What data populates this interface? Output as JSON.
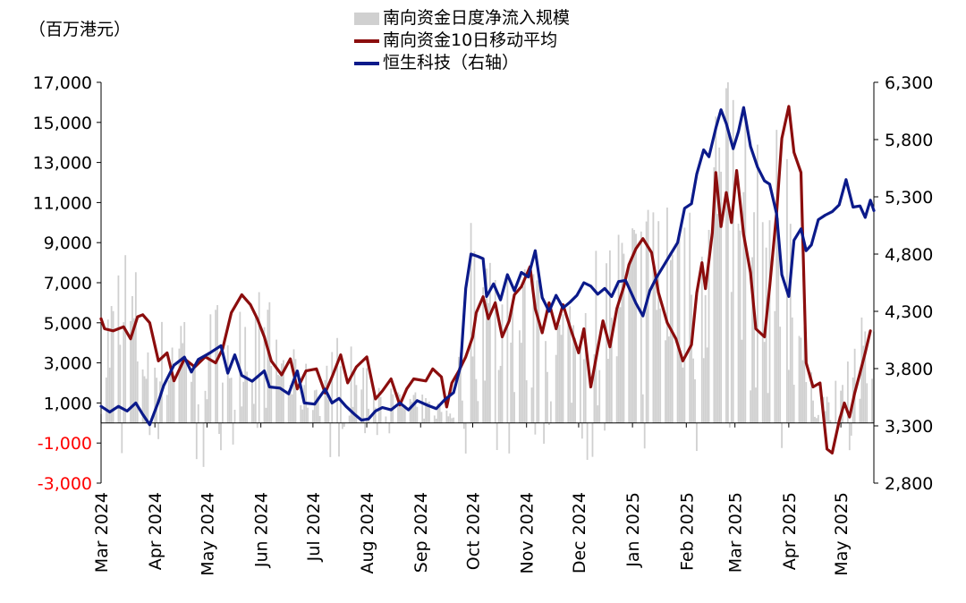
{
  "unit_label": "（百万港元）",
  "legend": [
    {
      "label": "南向资金日度净流入规模",
      "kind": "bar",
      "color": "#d0d0d0"
    },
    {
      "label": "南向资金10日移动平均",
      "kind": "line",
      "color": "#8b0d0d"
    },
    {
      "label": "恒生科技（右轴）",
      "kind": "line",
      "color": "#0b1a8a"
    }
  ],
  "chart_data": {
    "type": "bar+line",
    "left_axis": {
      "min": -3000,
      "max": 17000,
      "ticks": [
        "17,000",
        "15,000",
        "13,000",
        "11,000",
        "9,000",
        "7,000",
        "5,000",
        "3,000",
        "1,000",
        "-1,000",
        "-3,000"
      ],
      "tick_values": [
        17000,
        15000,
        13000,
        11000,
        9000,
        7000,
        5000,
        3000,
        1000,
        -1000,
        -3000
      ],
      "negative_color": "#ff0000"
    },
    "right_axis": {
      "min": 2800,
      "max": 6300,
      "ticks": [
        "6,300",
        "5,800",
        "5,300",
        "4,800",
        "4,300",
        "3,800",
        "3,300",
        "2,800"
      ],
      "tick_values": [
        6300,
        5800,
        5300,
        4800,
        4300,
        3800,
        3300,
        2800
      ]
    },
    "x_axis": {
      "start": "2024-03-01",
      "end": "2025-05-20",
      "ticks": [
        {
          "label": "Mar 2024",
          "date": "2024-03-01"
        },
        {
          "label": "Apr 2024",
          "date": "2024-04-01"
        },
        {
          "label": "May 2024",
          "date": "2024-05-01"
        },
        {
          "label": "Jun 2024",
          "date": "2024-06-01"
        },
        {
          "label": "Jul 2024",
          "date": "2024-07-01"
        },
        {
          "label": "Aug 2024",
          "date": "2024-08-01"
        },
        {
          "label": "Sep 2024",
          "date": "2024-09-01"
        },
        {
          "label": "Oct 2024",
          "date": "2024-10-01"
        },
        {
          "label": "Nov 2024",
          "date": "2024-11-01"
        },
        {
          "label": "Dec 2024",
          "date": "2024-12-01"
        },
        {
          "label": "Jan 2025",
          "date": "2025-01-01"
        },
        {
          "label": "Feb 2025",
          "date": "2025-02-01"
        },
        {
          "label": "Mar 2025",
          "date": "2025-03-01"
        },
        {
          "label": "Apr 2025",
          "date": "2025-04-01"
        },
        {
          "label": "May 2025",
          "date": "2025-05-01"
        }
      ]
    },
    "series": [
      {
        "name": "南向资金日度净流入规模",
        "type": "bar",
        "axis": "left",
        "color": "#d0d0d0",
        "anchors": [
          [
            "2024-03-01",
            3000
          ],
          [
            "2024-03-15",
            5500
          ],
          [
            "2024-04-01",
            2500
          ],
          [
            "2024-04-15",
            4000
          ],
          [
            "2024-05-01",
            3000
          ],
          [
            "2024-05-20",
            4500
          ],
          [
            "2024-06-05",
            3500
          ],
          [
            "2024-06-20",
            2000
          ],
          [
            "2024-07-01",
            1500
          ],
          [
            "2024-07-15",
            2500
          ],
          [
            "2024-08-01",
            1800
          ],
          [
            "2024-08-15",
            1000
          ],
          [
            "2024-09-01",
            800
          ],
          [
            "2024-09-20",
            500
          ],
          [
            "2024-10-01",
            6500
          ],
          [
            "2024-10-15",
            5000
          ],
          [
            "2024-11-01",
            4500
          ],
          [
            "2024-11-15",
            3500
          ],
          [
            "2024-12-01",
            4000
          ],
          [
            "2024-12-15",
            5500
          ],
          [
            "2025-01-01",
            6000
          ],
          [
            "2025-01-15",
            7000
          ],
          [
            "2025-02-01",
            8000
          ],
          [
            "2025-02-15",
            11000
          ],
          [
            "2025-03-01",
            9500
          ],
          [
            "2025-03-15",
            7500
          ],
          [
            "2025-04-01",
            9000
          ],
          [
            "2025-04-12",
            1500
          ],
          [
            "2025-04-25",
            800
          ],
          [
            "2025-05-10",
            3000
          ],
          [
            "2025-05-20",
            2500
          ]
        ]
      },
      {
        "name": "南向资金10日移动平均",
        "type": "line",
        "axis": "left",
        "color": "#8b0d0d",
        "points": [
          [
            "2024-03-01",
            5200
          ],
          [
            "2024-03-03",
            4700
          ],
          [
            "2024-03-08",
            4600
          ],
          [
            "2024-03-14",
            4800
          ],
          [
            "2024-03-18",
            4200
          ],
          [
            "2024-03-22",
            5300
          ],
          [
            "2024-03-25",
            5400
          ],
          [
            "2024-03-29",
            5000
          ],
          [
            "2024-04-03",
            3100
          ],
          [
            "2024-04-08",
            3500
          ],
          [
            "2024-04-12",
            2100
          ],
          [
            "2024-04-18",
            3200
          ],
          [
            "2024-04-24",
            2800
          ],
          [
            "2024-04-30",
            3300
          ],
          [
            "2024-05-06",
            3000
          ],
          [
            "2024-05-10",
            3700
          ],
          [
            "2024-05-15",
            5500
          ],
          [
            "2024-05-21",
            6400
          ],
          [
            "2024-05-26",
            5900
          ],
          [
            "2024-05-30",
            5200
          ],
          [
            "2024-06-03",
            4300
          ],
          [
            "2024-06-07",
            3100
          ],
          [
            "2024-06-13",
            2400
          ],
          [
            "2024-06-18",
            3200
          ],
          [
            "2024-06-22",
            1700
          ],
          [
            "2024-06-27",
            2600
          ],
          [
            "2024-07-03",
            2700
          ],
          [
            "2024-07-08",
            1500
          ],
          [
            "2024-07-12",
            2300
          ],
          [
            "2024-07-17",
            3400
          ],
          [
            "2024-07-21",
            2000
          ],
          [
            "2024-07-26",
            2800
          ],
          [
            "2024-08-01",
            3300
          ],
          [
            "2024-08-06",
            1200
          ],
          [
            "2024-08-10",
            1600
          ],
          [
            "2024-08-15",
            2200
          ],
          [
            "2024-08-20",
            900
          ],
          [
            "2024-08-24",
            1700
          ],
          [
            "2024-08-28",
            2200
          ],
          [
            "2024-09-04",
            2100
          ],
          [
            "2024-09-08",
            2700
          ],
          [
            "2024-09-13",
            2300
          ],
          [
            "2024-09-16",
            800
          ],
          [
            "2024-09-19",
            2000
          ],
          [
            "2024-09-23",
            2600
          ],
          [
            "2024-09-27",
            3300
          ],
          [
            "2024-10-01",
            4300
          ],
          [
            "2024-10-03",
            5500
          ],
          [
            "2024-10-07",
            6300
          ],
          [
            "2024-10-10",
            5200
          ],
          [
            "2024-10-14",
            6000
          ],
          [
            "2024-10-18",
            4300
          ],
          [
            "2024-10-22",
            5100
          ],
          [
            "2024-10-25",
            6400
          ],
          [
            "2024-10-29",
            6800
          ],
          [
            "2024-11-03",
            7800
          ],
          [
            "2024-11-06",
            5700
          ],
          [
            "2024-11-10",
            4500
          ],
          [
            "2024-11-14",
            6000
          ],
          [
            "2024-11-18",
            4700
          ],
          [
            "2024-11-22",
            5900
          ],
          [
            "2024-11-26",
            4800
          ],
          [
            "2024-12-01",
            3500
          ],
          [
            "2024-12-04",
            4700
          ],
          [
            "2024-12-08",
            1800
          ],
          [
            "2024-12-12",
            3700
          ],
          [
            "2024-12-15",
            5100
          ],
          [
            "2024-12-19",
            3800
          ],
          [
            "2024-12-23",
            5700
          ],
          [
            "2024-12-27",
            6800
          ],
          [
            "2024-12-30",
            7900
          ],
          [
            "2025-01-03",
            8700
          ],
          [
            "2025-01-07",
            9200
          ],
          [
            "2025-01-12",
            8500
          ],
          [
            "2025-01-16",
            6500
          ],
          [
            "2025-01-21",
            5000
          ],
          [
            "2025-01-26",
            4200
          ],
          [
            "2025-01-30",
            3100
          ],
          [
            "2025-02-04",
            3900
          ],
          [
            "2025-02-07",
            6500
          ],
          [
            "2025-02-10",
            8000
          ],
          [
            "2025-02-12",
            6700
          ],
          [
            "2025-02-16",
            9500
          ],
          [
            "2025-02-18",
            12500
          ],
          [
            "2025-02-21",
            9800
          ],
          [
            "2025-02-24",
            11500
          ],
          [
            "2025-02-27",
            10000
          ],
          [
            "2025-03-02",
            12600
          ],
          [
            "2025-03-06",
            9400
          ],
          [
            "2025-03-10",
            7500
          ],
          [
            "2025-03-13",
            4700
          ],
          [
            "2025-03-18",
            4300
          ],
          [
            "2025-03-21",
            6800
          ],
          [
            "2025-03-25",
            10500
          ],
          [
            "2025-03-28",
            14200
          ],
          [
            "2025-04-01",
            15800
          ],
          [
            "2025-04-04",
            13500
          ],
          [
            "2025-04-08",
            12500
          ],
          [
            "2025-04-11",
            3000
          ],
          [
            "2025-04-15",
            1800
          ],
          [
            "2025-04-19",
            2000
          ],
          [
            "2025-04-23",
            -1300
          ],
          [
            "2025-04-26",
            -1500
          ],
          [
            "2025-04-30",
            100
          ],
          [
            "2025-05-03",
            1000
          ],
          [
            "2025-05-06",
            300
          ],
          [
            "2025-05-09",
            1500
          ],
          [
            "2025-05-12",
            2500
          ],
          [
            "2025-05-15",
            3500
          ],
          [
            "2025-05-18",
            4600
          ]
        ]
      },
      {
        "name": "恒生科技（右轴）",
        "type": "line",
        "axis": "right",
        "color": "#0b1a8a",
        "points": [
          [
            "2024-03-01",
            3470
          ],
          [
            "2024-03-06",
            3420
          ],
          [
            "2024-03-11",
            3470
          ],
          [
            "2024-03-16",
            3430
          ],
          [
            "2024-03-21",
            3500
          ],
          [
            "2024-03-25",
            3400
          ],
          [
            "2024-03-29",
            3310
          ],
          [
            "2024-04-03",
            3510
          ],
          [
            "2024-04-06",
            3650
          ],
          [
            "2024-04-12",
            3830
          ],
          [
            "2024-04-18",
            3900
          ],
          [
            "2024-04-22",
            3770
          ],
          [
            "2024-04-26",
            3880
          ],
          [
            "2024-05-03",
            3940
          ],
          [
            "2024-05-09",
            4000
          ],
          [
            "2024-05-13",
            3760
          ],
          [
            "2024-05-17",
            3920
          ],
          [
            "2024-05-21",
            3740
          ],
          [
            "2024-05-27",
            3690
          ],
          [
            "2024-06-03",
            3780
          ],
          [
            "2024-06-06",
            3640
          ],
          [
            "2024-06-12",
            3630
          ],
          [
            "2024-06-17",
            3580
          ],
          [
            "2024-06-22",
            3780
          ],
          [
            "2024-06-26",
            3500
          ],
          [
            "2024-07-02",
            3490
          ],
          [
            "2024-07-08",
            3620
          ],
          [
            "2024-07-12",
            3500
          ],
          [
            "2024-07-16",
            3540
          ],
          [
            "2024-07-20",
            3470
          ],
          [
            "2024-07-25",
            3400
          ],
          [
            "2024-07-29",
            3350
          ],
          [
            "2024-08-02",
            3360
          ],
          [
            "2024-08-06",
            3430
          ],
          [
            "2024-08-10",
            3460
          ],
          [
            "2024-08-15",
            3440
          ],
          [
            "2024-08-20",
            3500
          ],
          [
            "2024-08-25",
            3440
          ],
          [
            "2024-08-30",
            3520
          ],
          [
            "2024-09-05",
            3480
          ],
          [
            "2024-09-10",
            3450
          ],
          [
            "2024-09-15",
            3530
          ],
          [
            "2024-09-20",
            3590
          ],
          [
            "2024-09-24",
            3820
          ],
          [
            "2024-09-27",
            4500
          ],
          [
            "2024-09-30",
            4800
          ],
          [
            "2024-10-04",
            4780
          ],
          [
            "2024-10-07",
            4760
          ],
          [
            "2024-10-09",
            4430
          ],
          [
            "2024-10-13",
            4540
          ],
          [
            "2024-10-17",
            4400
          ],
          [
            "2024-10-21",
            4620
          ],
          [
            "2024-10-25",
            4480
          ],
          [
            "2024-10-29",
            4640
          ],
          [
            "2024-11-02",
            4600
          ],
          [
            "2024-11-06",
            4830
          ],
          [
            "2024-11-10",
            4420
          ],
          [
            "2024-11-14",
            4300
          ],
          [
            "2024-11-18",
            4440
          ],
          [
            "2024-11-22",
            4330
          ],
          [
            "2024-11-26",
            4380
          ],
          [
            "2024-11-30",
            4440
          ],
          [
            "2024-12-04",
            4550
          ],
          [
            "2024-12-08",
            4520
          ],
          [
            "2024-12-12",
            4450
          ],
          [
            "2024-12-16",
            4500
          ],
          [
            "2024-12-20",
            4430
          ],
          [
            "2024-12-24",
            4560
          ],
          [
            "2024-12-28",
            4570
          ],
          [
            "2025-01-03",
            4370
          ],
          [
            "2025-01-07",
            4260
          ],
          [
            "2025-01-11",
            4480
          ],
          [
            "2025-01-15",
            4600
          ],
          [
            "2025-01-19",
            4700
          ],
          [
            "2025-01-23",
            4800
          ],
          [
            "2025-01-27",
            4900
          ],
          [
            "2025-01-31",
            5200
          ],
          [
            "2025-02-04",
            5240
          ],
          [
            "2025-02-07",
            5500
          ],
          [
            "2025-02-11",
            5710
          ],
          [
            "2025-02-14",
            5650
          ],
          [
            "2025-02-18",
            5900
          ],
          [
            "2025-02-21",
            6060
          ],
          [
            "2025-02-24",
            5940
          ],
          [
            "2025-02-28",
            5720
          ],
          [
            "2025-03-03",
            5870
          ],
          [
            "2025-03-06",
            6080
          ],
          [
            "2025-03-10",
            5740
          ],
          [
            "2025-03-14",
            5560
          ],
          [
            "2025-03-18",
            5440
          ],
          [
            "2025-03-21",
            5410
          ],
          [
            "2025-03-25",
            5150
          ],
          [
            "2025-03-28",
            4620
          ],
          [
            "2025-04-01",
            4430
          ],
          [
            "2025-04-04",
            4920
          ],
          [
            "2025-04-08",
            5020
          ],
          [
            "2025-04-11",
            4830
          ],
          [
            "2025-04-14",
            4880
          ],
          [
            "2025-04-18",
            5100
          ],
          [
            "2025-04-22",
            5140
          ],
          [
            "2025-04-26",
            5170
          ],
          [
            "2025-04-30",
            5230
          ],
          [
            "2025-05-04",
            5450
          ],
          [
            "2025-05-08",
            5210
          ],
          [
            "2025-05-12",
            5220
          ],
          [
            "2025-05-15",
            5120
          ],
          [
            "2025-05-18",
            5270
          ],
          [
            "2025-05-20",
            5180
          ]
        ]
      }
    ]
  }
}
